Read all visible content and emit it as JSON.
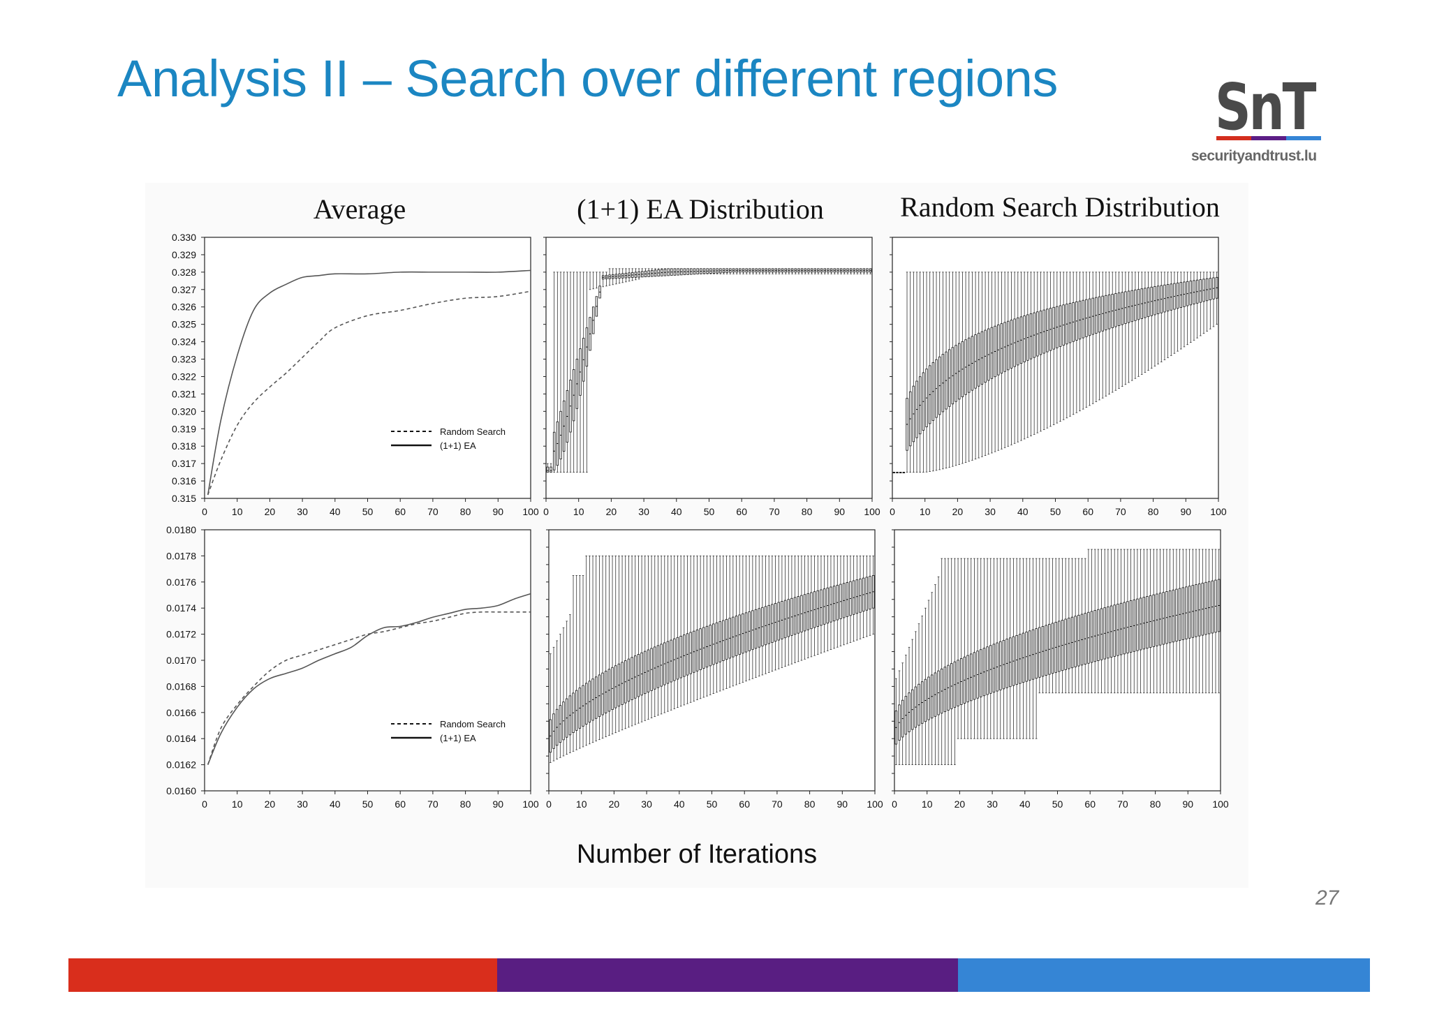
{
  "slide": {
    "title": "Analysis II – Search over different regions",
    "page_number": "27",
    "logo": {
      "text": "SnT",
      "subtext": "securityandtrust.lu",
      "colors": [
        "#d42e1e",
        "#5c1e86",
        "#3585d6"
      ]
    },
    "footer_colors": [
      "#d92e1c",
      "#591e82",
      "#3585d5"
    ]
  },
  "figure": {
    "column_titles": [
      "Average",
      "(1+1) EA Distribution",
      "Random Search Distribution"
    ],
    "xlabel": "Number of Iterations"
  },
  "chart_data": [
    {
      "type": "line",
      "panel": "top-average",
      "x": [
        1,
        5,
        10,
        15,
        20,
        25,
        30,
        35,
        40,
        50,
        60,
        70,
        80,
        90,
        100
      ],
      "series": [
        {
          "name": "Random Search",
          "style": "dashed",
          "values": [
            0.3152,
            0.3172,
            0.3192,
            0.3205,
            0.3214,
            0.3222,
            0.3231,
            0.324,
            0.3248,
            0.3255,
            0.3258,
            0.3262,
            0.3265,
            0.3266,
            0.3269
          ]
        },
        {
          "name": "(1+1) EA",
          "style": "solid",
          "values": [
            0.3152,
            0.3195,
            0.3232,
            0.3258,
            0.3268,
            0.3273,
            0.3277,
            0.3278,
            0.3279,
            0.3279,
            0.328,
            0.328,
            0.328,
            0.328,
            0.3281
          ]
        }
      ],
      "xlim": [
        0,
        100
      ],
      "ylim": [
        0.315,
        0.33
      ],
      "xticks": [
        "0",
        "10",
        "20",
        "30",
        "40",
        "50",
        "60",
        "70",
        "80",
        "90",
        "100"
      ],
      "yticks": [
        "0.315",
        "0.316",
        "0.317",
        "0.318",
        "0.319",
        "0.320",
        "0.321",
        "0.322",
        "0.323",
        "0.324",
        "0.325",
        "0.326",
        "0.327",
        "0.328",
        "0.329",
        "0.330"
      ],
      "legend_position": "lower-right"
    },
    {
      "type": "line",
      "panel": "bottom-average",
      "x": [
        1,
        5,
        10,
        15,
        20,
        25,
        30,
        35,
        40,
        45,
        50,
        55,
        60,
        65,
        70,
        75,
        80,
        85,
        90,
        95,
        100
      ],
      "series": [
        {
          "name": "Random Search",
          "style": "dashed",
          "values": [
            0.0162,
            0.01648,
            0.01666,
            0.0168,
            0.01692,
            0.017,
            0.01704,
            0.01708,
            0.01712,
            0.01716,
            0.0172,
            0.01722,
            0.01725,
            0.01728,
            0.0173,
            0.01733,
            0.01736,
            0.01737,
            0.01737,
            0.01737,
            0.01737
          ]
        },
        {
          "name": "(1+1) EA",
          "style": "solid",
          "values": [
            0.0162,
            0.01644,
            0.01664,
            0.01678,
            0.01686,
            0.0169,
            0.01694,
            0.017,
            0.01705,
            0.0171,
            0.01719,
            0.01725,
            0.01726,
            0.01729,
            0.01733,
            0.01736,
            0.01739,
            0.0174,
            0.01742,
            0.01747,
            0.01751
          ]
        }
      ],
      "xlim": [
        0,
        100
      ],
      "ylim": [
        0.016,
        0.018
      ],
      "xticks": [
        "0",
        "10",
        "20",
        "30",
        "40",
        "50",
        "60",
        "70",
        "80",
        "90",
        "100"
      ],
      "yticks": [
        "0.0160",
        "0.0162",
        "0.0164",
        "0.0166",
        "0.0168",
        "0.0170",
        "0.0172",
        "0.0174",
        "0.0176",
        "0.0178",
        "0.0180"
      ],
      "legend_position": "lower-right"
    },
    {
      "type": "box",
      "panel": "top-ea-distribution",
      "note": "boxplots at each iteration 1..100; values shown approximate",
      "xlim": [
        0,
        100
      ],
      "ylim": [
        0.315,
        0.33
      ],
      "xticks": [
        "0",
        "10",
        "20",
        "30",
        "40",
        "50",
        "60",
        "70",
        "80",
        "90",
        "100"
      ]
    },
    {
      "type": "box",
      "panel": "top-rs-distribution",
      "xlim": [
        0,
        100
      ],
      "ylim": [
        0.315,
        0.33
      ],
      "xticks": [
        "0",
        "10",
        "20",
        "30",
        "40",
        "50",
        "60",
        "70",
        "80",
        "90",
        "100"
      ]
    },
    {
      "type": "box",
      "panel": "bottom-ea-distribution",
      "xlim": [
        0,
        100
      ],
      "ylim": [
        0.016,
        0.018
      ],
      "xticks": [
        "0",
        "10",
        "20",
        "30",
        "40",
        "50",
        "60",
        "70",
        "80",
        "90",
        "100"
      ]
    },
    {
      "type": "box",
      "panel": "bottom-rs-distribution",
      "xlim": [
        0,
        100
      ],
      "ylim": [
        0.016,
        0.018
      ],
      "xticks": [
        "0",
        "10",
        "20",
        "30",
        "40",
        "50",
        "60",
        "70",
        "80",
        "90",
        "100"
      ]
    }
  ]
}
